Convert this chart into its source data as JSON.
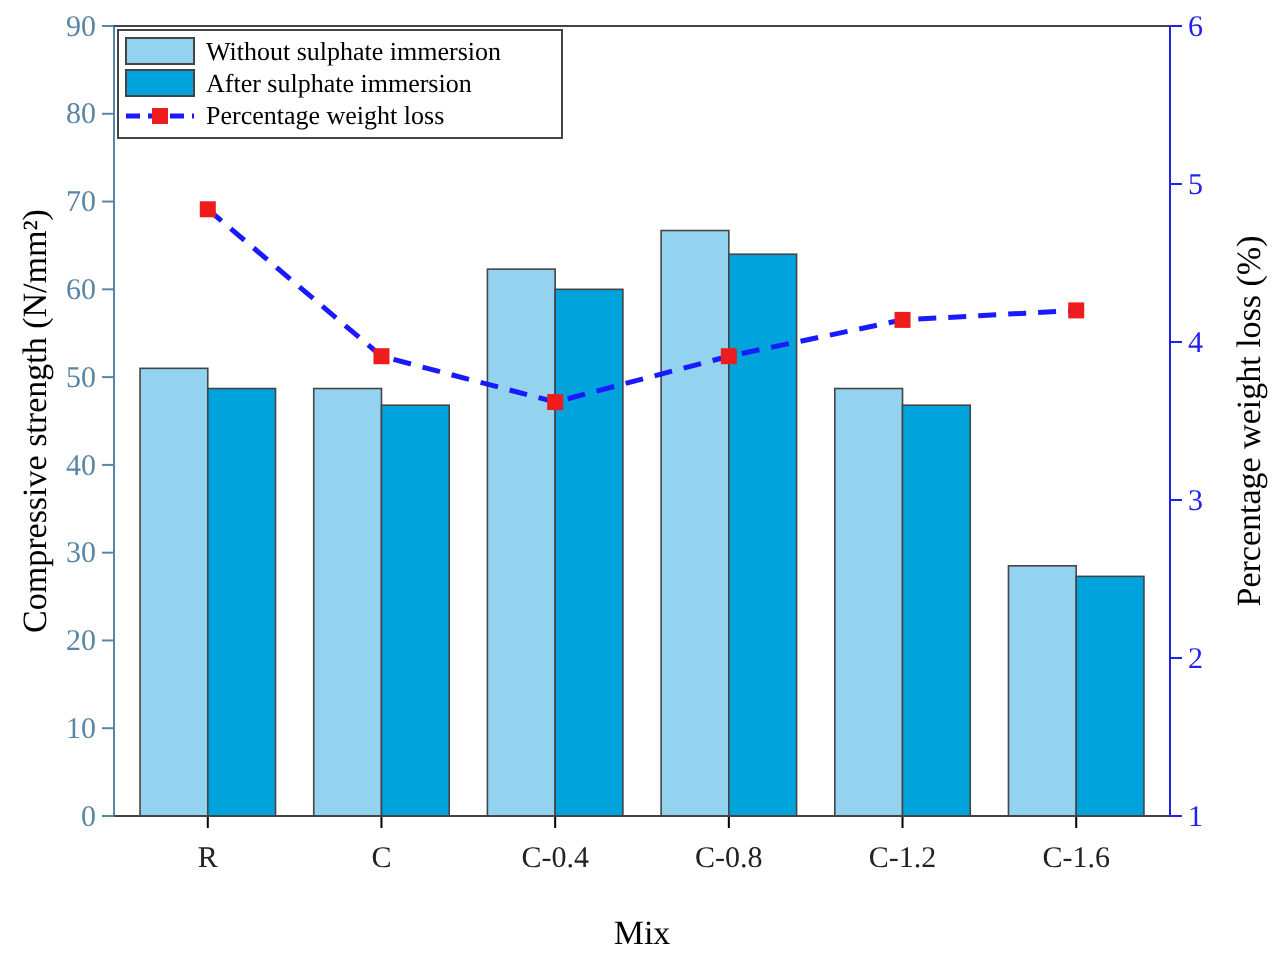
{
  "chart_data": {
    "type": "bar",
    "xlabel": "Mix",
    "ylabel": "Compressive strength (N/mm²)",
    "y2label": "Percentage weight loss (%)",
    "categories": [
      "R",
      "C",
      "C-0.4",
      "C-0.8",
      "C-1.2",
      "C-1.6"
    ],
    "series": [
      {
        "name": "Without sulphate immersion",
        "color": "#93d3f0",
        "values": [
          51,
          48.7,
          62.3,
          66.7,
          48.7,
          28.5
        ]
      },
      {
        "name": "After sulphate immersion",
        "color": "#00a3dc",
        "values": [
          48.7,
          46.8,
          60,
          64,
          46.8,
          27.3
        ]
      },
      {
        "name": "Percentage weight loss",
        "type": "line",
        "axis": "y2",
        "color": "#1a1aff",
        "line_style": "dashed",
        "marker": "square",
        "values": [
          4.84,
          3.91,
          3.62,
          3.91,
          4.14,
          4.2
        ]
      }
    ],
    "ylim": [
      0,
      90
    ],
    "yticks": [
      0,
      10,
      20,
      30,
      40,
      50,
      60,
      70,
      80,
      90
    ],
    "y2lim": [
      1,
      6
    ],
    "y2ticks": [
      1,
      2,
      3,
      4,
      5,
      6
    ],
    "legend": "top left",
    "grid": false
  }
}
